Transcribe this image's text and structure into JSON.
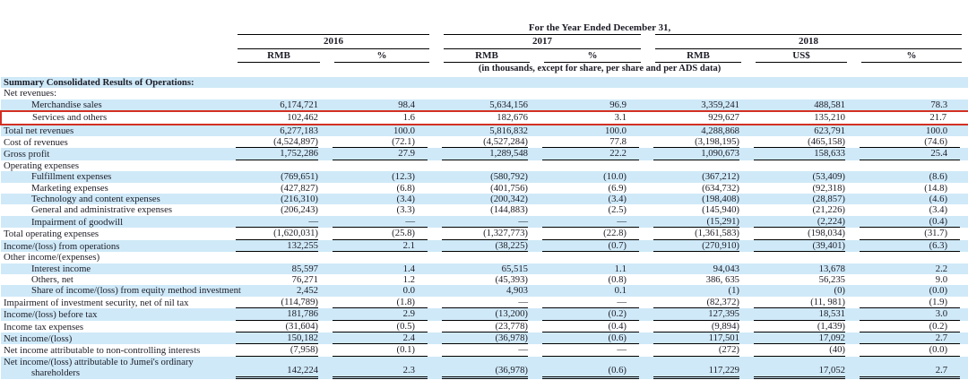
{
  "table": {
    "title": "For the Year Ended December 31,",
    "subtitle": "(in thousands, except for share, per share and per ADS data)",
    "year_groups": [
      {
        "label": "2016"
      },
      {
        "label": "2017"
      },
      {
        "label": "2018"
      }
    ],
    "columns": [
      "RMB",
      "%",
      "RMB",
      "%",
      "RMB",
      "US$",
      "%"
    ],
    "colors": {
      "stripe_blue": "#cfe9f8",
      "highlight_red": "#d32f23",
      "text": "#1c1c26",
      "rule": "#000000"
    },
    "rows": [
      {
        "label": "Summary Consolidated Results of Operations:",
        "bold": true,
        "stripe": true,
        "values": []
      },
      {
        "label": "Net revenues:",
        "values": []
      },
      {
        "label": "Merchandise sales",
        "indent": 1,
        "stripe": true,
        "values": [
          "6,174,721",
          "98.4",
          "5,634,156",
          "96.9",
          "3,359,241",
          "488,581",
          "78.3"
        ]
      },
      {
        "label": "Services and others",
        "indent": 1,
        "highlight": true,
        "values": [
          "102,462",
          "1.6",
          "182,676",
          "3.1",
          "929,627",
          "135,210",
          "21.7"
        ]
      },
      {
        "label": "Total net revenues",
        "stripe": true,
        "values": [
          "6,277,183",
          "100.0",
          "5,816,832",
          "100.0",
          "4,288,868",
          "623,791",
          "100.0"
        ]
      },
      {
        "label": "Cost of revenues",
        "rule": "bottom",
        "values": [
          "(4,524,897)",
          "(72.1)",
          "(4,527,284)",
          "77.8",
          "(3,198,195)",
          "(465,158)",
          "(74.6)"
        ]
      },
      {
        "label": "Gross profit",
        "stripe": true,
        "rule": "bottom",
        "values": [
          "1,752,286",
          "27.9",
          "1,289,548",
          "22.2",
          "1,090,673",
          "158,633",
          "25.4"
        ]
      },
      {
        "label": "Operating expenses",
        "values": []
      },
      {
        "label": "Fulfillment expenses",
        "indent": 1,
        "stripe": true,
        "values": [
          "(769,651)",
          "(12.3)",
          "(580,792)",
          "(10.0)",
          "(367,212)",
          "(53,409)",
          "(8.6)"
        ]
      },
      {
        "label": "Marketing expenses",
        "indent": 1,
        "values": [
          "(427,827)",
          "(6.8)",
          "(401,756)",
          "(6.9)",
          "(634,732)",
          "(92,318)",
          "(14.8)"
        ]
      },
      {
        "label": "Technology and content expenses",
        "indent": 1,
        "stripe": true,
        "values": [
          "(216,310)",
          "(3.4)",
          "(200,342)",
          "(3.4)",
          "(198,408)",
          "(28,857)",
          "(4.6)"
        ]
      },
      {
        "label": "General and administrative expenses",
        "indent": 1,
        "values": [
          "(206,243)",
          "(3.3)",
          "(144,883)",
          "(2.5)",
          "(145,940)",
          "(21,226)",
          "(3.4)"
        ]
      },
      {
        "label": "Impairment of goodwill",
        "indent": 1,
        "stripe": true,
        "rule": "bottom",
        "values": [
          "—",
          "—",
          "—",
          "—",
          "(15,291)",
          "(2,224)",
          "(0.4)"
        ]
      },
      {
        "label": "Total operating expenses",
        "rule": "bottom",
        "values": [
          "(1,620,031)",
          "(25.8)",
          "(1,327,773)",
          "(22.8)",
          "(1,361,583)",
          "(198,034)",
          "(31.7)"
        ]
      },
      {
        "label": "Income/(loss) from operations",
        "stripe": true,
        "rule": "bottom",
        "values": [
          "132,255",
          "2.1",
          "(38,225)",
          "(0.7)",
          "(270,910)",
          "(39,401)",
          "(6.3)"
        ]
      },
      {
        "label": "Other income/(expenses)",
        "values": []
      },
      {
        "label": "Interest income",
        "indent": 1,
        "stripe": true,
        "values": [
          "85,597",
          "1.4",
          "65,515",
          "1.1",
          "94,043",
          "13,678",
          "2.2"
        ]
      },
      {
        "label": "Others, net",
        "indent": 1,
        "values": [
          "76,271",
          "1.2",
          "(45,393)",
          "(0.8)",
          "386, 635",
          "56,235",
          "9.0"
        ]
      },
      {
        "label": "Share of income/(loss) from equity method investment",
        "indent": 1,
        "stripe": true,
        "values": [
          "2,452",
          "0.0",
          "4,903",
          "0.1",
          "(1)",
          "(0)",
          "(0.0)"
        ]
      },
      {
        "label": "Impairment of investment security, net of nil tax",
        "rule": "bottom",
        "values": [
          "(114,789)",
          "(1.8)",
          "—",
          "—",
          "(82,372)",
          "(11, 981)",
          "(1.9)"
        ]
      },
      {
        "label": "Income/(loss) before tax",
        "stripe": true,
        "rule": "bottom",
        "values": [
          "181,786",
          "2.9",
          "(13,200)",
          "(0.2)",
          "127,395",
          "18,531",
          "3.0"
        ]
      },
      {
        "label": "Income tax expenses",
        "rule": "bottom",
        "values": [
          "(31,604)",
          "(0.5)",
          "(23,778)",
          "(0.4)",
          "(9,894)",
          "(1,439)",
          "(0.2)"
        ]
      },
      {
        "label": "Net income/(loss)",
        "stripe": true,
        "rule": "bottom",
        "values": [
          "150,182",
          "2.4",
          "(36,978)",
          "(0.6)",
          "117,501",
          "17,092",
          "2.7"
        ]
      },
      {
        "label": "Net income attributable to non-controlling interests",
        "rule": "bottom",
        "values": [
          "(7,958)",
          "(0.1)",
          "—",
          "—",
          "(272)",
          "(40)",
          "(0.0)"
        ]
      },
      {
        "label": "Net income/(loss) attributable to Jumei's ordinary",
        "label2": "shareholders",
        "stripe": true,
        "rule": "double",
        "values": [
          "142,224",
          "2.3",
          "(36,978)",
          "(0.6)",
          "117,229",
          "17,052",
          "2.7"
        ]
      }
    ]
  }
}
